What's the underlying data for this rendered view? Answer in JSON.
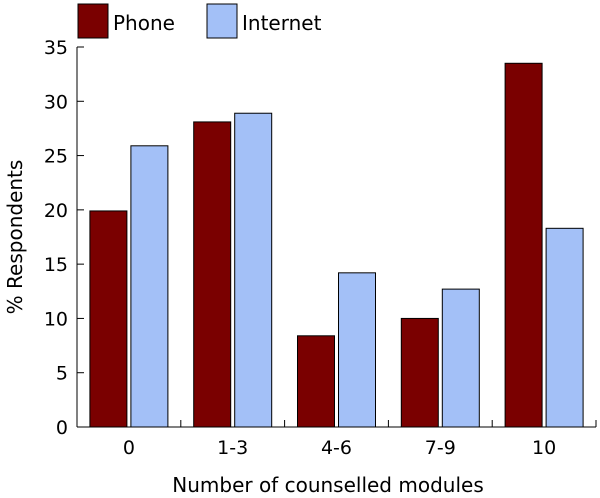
{
  "chart_data": {
    "type": "bar",
    "categories": [
      "0",
      "1-3",
      "4-6",
      "7-9",
      "10"
    ],
    "series": [
      {
        "name": "Phone",
        "color": "#7a0000",
        "values": [
          19.9,
          28.1,
          8.4,
          10.0,
          33.5
        ]
      },
      {
        "name": "Internet",
        "color": "#a3c0f7",
        "values": [
          25.9,
          28.9,
          14.2,
          12.7,
          18.3
        ]
      }
    ],
    "xlabel": "Number of counselled modules",
    "ylabel": "% Respondents",
    "ylim": [
      0,
      35
    ],
    "yticks": [
      0,
      5,
      10,
      15,
      20,
      25,
      30,
      35
    ],
    "grid": false,
    "legend_position": "top-left"
  }
}
